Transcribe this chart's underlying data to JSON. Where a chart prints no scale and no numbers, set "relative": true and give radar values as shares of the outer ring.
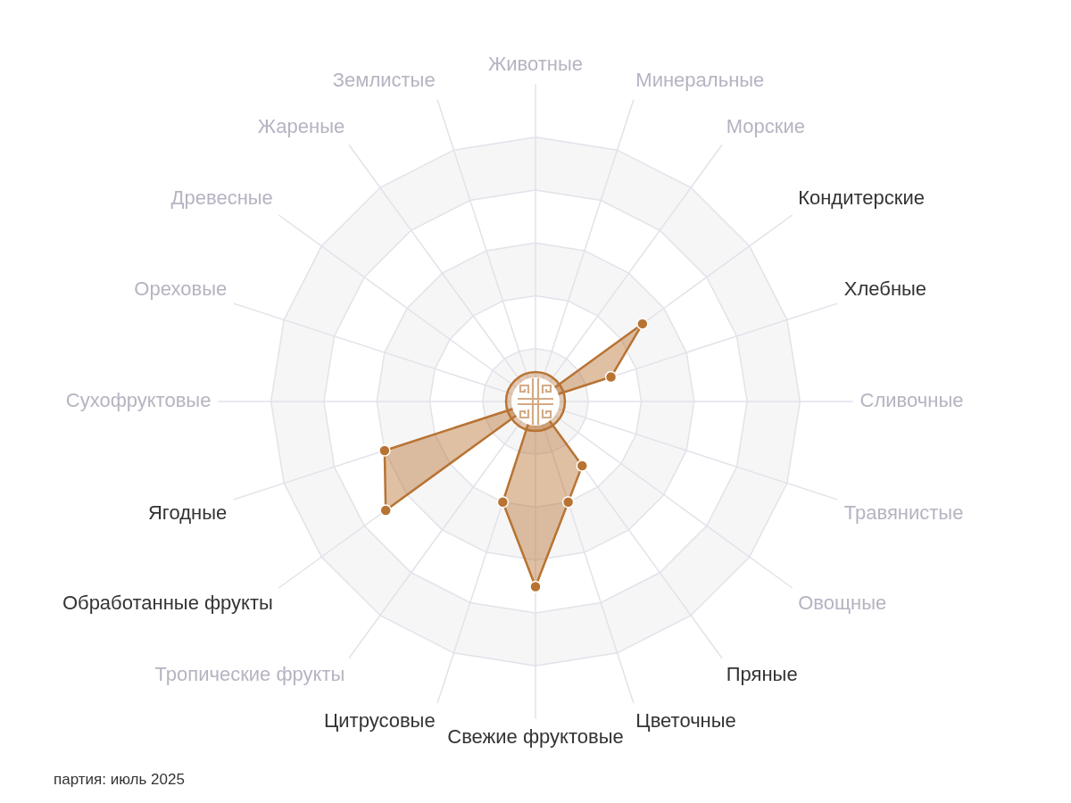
{
  "chart_data": {
    "type": "radar",
    "relative": true,
    "grid": true,
    "legend": false,
    "marker": "circle",
    "categories": [
      "Животные",
      "Минеральные",
      "Морские",
      "Кондитерские",
      "Хлебные",
      "Сливочные",
      "Травянистые",
      "Овощные",
      "Пряные",
      "Цветочные",
      "Свежие фруктовые",
      "Цитрусовые",
      "Тропические фрукты",
      "Обработанные фрукты",
      "Ягодные",
      "Сухофруктовые",
      "Ореховые",
      "Древесные",
      "Жареные",
      "Землистые"
    ],
    "series": [
      {
        "color": "#b87333",
        "values": [
          0,
          0,
          0,
          0.5,
          0.3,
          0,
          0,
          0,
          0.3,
          0.4,
          0.7,
          0.4,
          0,
          0.7,
          0.6,
          0,
          0,
          0,
          0,
          0
        ]
      }
    ],
    "annotations": [
      "партия: июль 2025"
    ]
  }
}
